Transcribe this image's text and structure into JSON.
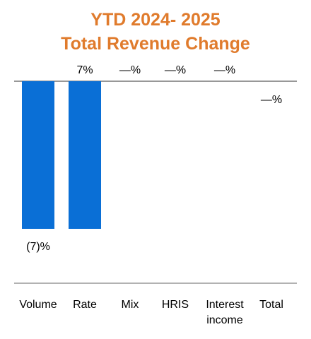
{
  "chart_data": {
    "type": "bar",
    "title": "YTD 2024- 2025",
    "subtitle": "Total Revenue Change",
    "categories": [
      "Volume",
      "Rate",
      "Mix",
      "HRIS",
      "Interest income",
      "Total"
    ],
    "category_lines": [
      [
        "Volume"
      ],
      [
        "Rate"
      ],
      [
        "Mix"
      ],
      [
        "HRIS"
      ],
      [
        "Interest",
        "income"
      ],
      [
        "Total"
      ]
    ],
    "values": [
      -7,
      7,
      0,
      0,
      0,
      0
    ],
    "data_labels": [
      "(7)%",
      "7%",
      "—%",
      "—%",
      "—%",
      "—%"
    ],
    "bar_color": "#0a6fd6",
    "xlabel": "",
    "ylabel": "",
    "grid": false,
    "legend": "none"
  }
}
